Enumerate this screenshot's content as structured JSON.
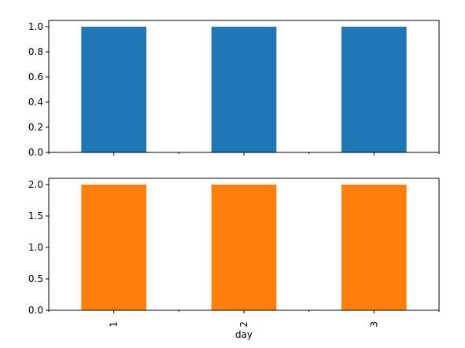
{
  "chart_data": [
    {
      "type": "bar",
      "categories": [
        "1",
        "2",
        "3"
      ],
      "values": [
        1.0,
        1.0,
        1.0
      ],
      "ylim": [
        0,
        1.05
      ],
      "yticks": [
        "0.0",
        "0.2",
        "0.4",
        "0.6",
        "0.8",
        "1.0"
      ],
      "ytick_values": [
        0.0,
        0.2,
        0.4,
        0.6,
        0.8,
        1.0
      ],
      "color": "#1f77b4",
      "title": "",
      "xlabel": "",
      "ylabel": "",
      "show_xticklabels": false,
      "grid": false
    },
    {
      "type": "bar",
      "categories": [
        "1",
        "2",
        "3"
      ],
      "values": [
        2.0,
        2.0,
        2.0
      ],
      "ylim": [
        0,
        2.1
      ],
      "yticks": [
        "0.0",
        "0.5",
        "1.0",
        "1.5",
        "2.0"
      ],
      "ytick_values": [
        0.0,
        0.5,
        1.0,
        1.5,
        2.0
      ],
      "color": "#ff7f0e",
      "title": "",
      "xlabel": "day",
      "ylabel": "",
      "show_xticklabels": true,
      "grid": false
    }
  ]
}
